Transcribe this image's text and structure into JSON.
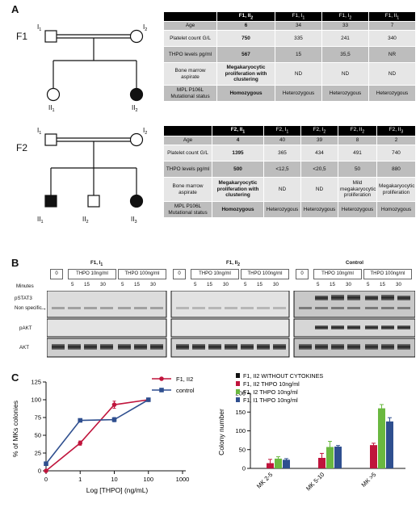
{
  "panelA": {
    "letter": "A",
    "f1": {
      "family": "F1",
      "individuals": [
        "I",
        "I",
        "II",
        "II"
      ],
      "subs": [
        "1",
        "2",
        "1",
        "2"
      ],
      "table": {
        "headers": [
          "",
          "F1, II",
          "F1, I",
          "F1, I",
          "F1, II"
        ],
        "header_subs": [
          "",
          "2",
          "1",
          "2",
          "1"
        ],
        "rows": [
          {
            "label": "Age",
            "values": [
              "6",
              "34",
              "33",
              "7"
            ]
          },
          {
            "label": "Platelet count G/L",
            "values": [
              "750",
              "335",
              "241",
              "340"
            ]
          },
          {
            "label": "THPO levels pg/ml",
            "values": [
              "567",
              "15",
              "35,5",
              "NR"
            ]
          },
          {
            "label": "Bone marrow aspirate",
            "values": [
              "Megakaryocytic proliferation with clustering",
              "ND",
              "ND",
              "ND"
            ]
          },
          {
            "label": "MPL P106L Mutational status",
            "values": [
              "Homozygous",
              "Heterozygous",
              "Heterozygous",
              "Heterozygous"
            ]
          }
        ]
      }
    },
    "f2": {
      "family": "F2",
      "individuals": [
        "I",
        "I",
        "II",
        "II",
        "II"
      ],
      "subs": [
        "1",
        "2",
        "1",
        "2",
        "3"
      ],
      "table": {
        "headers": [
          "",
          "F2, II",
          "F2, I",
          "F2, I",
          "F2, II",
          "F2, II"
        ],
        "header_subs": [
          "",
          "1",
          "1",
          "2",
          "2",
          "3"
        ],
        "rows": [
          {
            "label": "Age",
            "values": [
              "4",
              "40",
              "39",
              "8",
              "2"
            ]
          },
          {
            "label": "Platelet count G/L",
            "values": [
              "1395",
              "365",
              "434",
              "491",
              "740"
            ]
          },
          {
            "label": "THPO levels pg/ml",
            "values": [
              "500",
              "<12,5",
              "<20,5",
              "50",
              "880"
            ]
          },
          {
            "label": "Bone marrow aspirate",
            "values": [
              "Megakaryocytic proliferation with clustering",
              "ND",
              "ND",
              "Mild megakaryocytic proliferation",
              "Megakaryocytic proliferation"
            ]
          },
          {
            "label": "MPL P106L Mutational status",
            "values": [
              "Homozygous",
              "Heterozygous",
              "Heterozygous",
              "Heterozygous",
              "Homozygous"
            ]
          }
        ]
      }
    }
  },
  "panelB": {
    "letter": "B",
    "groups": [
      {
        "title": "F1, I",
        "title_sub": "1"
      },
      {
        "title": "F1, II",
        "title_sub": "2"
      },
      {
        "title": "Control",
        "title_sub": ""
      }
    ],
    "zero_label": "0",
    "thpo10_label": "THPO 10ng/ml",
    "thpo100_label": "THPO 100ng/ml",
    "minutes_label": "Minutes",
    "times": [
      "5",
      "15",
      "30",
      "5",
      "15",
      "30"
    ],
    "blot_labels": [
      "pSTAT3",
      "Non specific",
      "pAKT",
      "AKT"
    ]
  },
  "panelC": {
    "letter": "C",
    "chart_data": [
      {
        "type": "line",
        "xlabel": "Log [THPO] (ng/mL)",
        "ylabel": "% of MKs colonies",
        "xscale": "log",
        "x_ticks": [
          "0",
          "1",
          "10",
          "100",
          "1000"
        ],
        "y_ticks": [
          "0",
          "25",
          "50",
          "75",
          "100",
          "125"
        ],
        "ylim": [
          0,
          125
        ],
        "legend_position": "top-right",
        "series": [
          {
            "name": "F1, II2",
            "color": "#c0143c",
            "marker": "circle",
            "points": [
              {
                "x": "0",
                "y": 0,
                "err": 0
              },
              {
                "x": "1",
                "y": 39,
                "err": 3
              },
              {
                "x": "10",
                "y": 93,
                "err": 5
              },
              {
                "x": "100",
                "y": 100,
                "err": 0
              }
            ]
          },
          {
            "name": "control",
            "color": "#2f4f8f",
            "marker": "square",
            "points": [
              {
                "x": "0",
                "y": 10,
                "err": 0
              },
              {
                "x": "1",
                "y": 71,
                "err": 0
              },
              {
                "x": "10",
                "y": 72,
                "err": 3
              },
              {
                "x": "100",
                "y": 100,
                "err": 0
              }
            ]
          }
        ]
      },
      {
        "type": "bar",
        "ylabel": "Colony number",
        "ylim": [
          0,
          200
        ],
        "y_ticks": [
          "0",
          "50",
          "100",
          "150",
          "200"
        ],
        "categories": [
          "MK 2-5",
          "MK 5-10",
          "MK >5"
        ],
        "legend_position": "top",
        "series": [
          {
            "name": "F1, II2 WITHOUT CYTOKINES",
            "color": "#111111",
            "values": [
              0,
              0,
              0
            ],
            "err": [
              0,
              0,
              0
            ]
          },
          {
            "name": "F1, II2 THPO 10ng/ml",
            "color": "#c0143c",
            "values": [
              14,
              28,
              62
            ],
            "err": [
              10,
              12,
              5
            ]
          },
          {
            "name": "F1, I2 THPO 10ng/ml",
            "color": "#6ab840",
            "values": [
              26,
              57,
              160
            ],
            "err": [
              5,
              15,
              10
            ]
          },
          {
            "name": "F1, I1 THPO 10ng/ml",
            "color": "#2f4f8f",
            "values": [
              23,
              58,
              125
            ],
            "err": [
              3,
              3,
              10
            ]
          }
        ]
      }
    ]
  }
}
